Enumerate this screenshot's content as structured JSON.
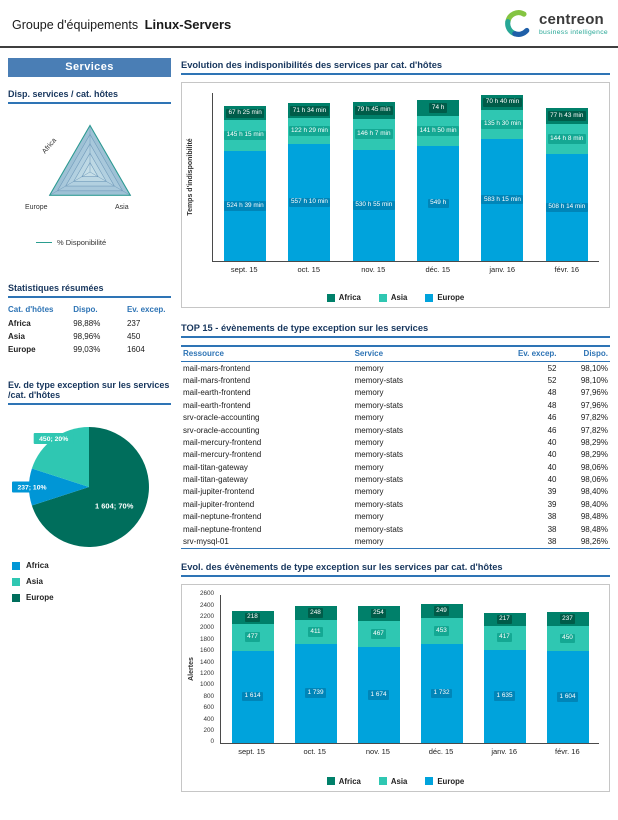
{
  "header": {
    "title_prefix": "Groupe d'équipements",
    "title_bold": "Linux-Servers",
    "logo_text": "centreon",
    "logo_subtitle": "business intelligence"
  },
  "colors": {
    "africa_bar": "#00806a",
    "asia_bar": "#2fc7b2",
    "europe_bar": "#00a3dc",
    "africa_pie": "#0096d6",
    "asia_pie": "#2fc7b2",
    "europe_pie": "#006e5c",
    "banner_bg": "#4a7eb5",
    "title_text": "#17365d",
    "accent_blue": "#2e74b5"
  },
  "sidebar": {
    "banner": "Services",
    "radar": {
      "title": "Disp. services / cat. hôtes",
      "legend": "% Disponibilité"
    },
    "stats": {
      "title": "Statistiques résumées",
      "columns": [
        "Cat. d'hôtes",
        "Dispo.",
        "Ev. excep."
      ],
      "rows": [
        [
          "Africa",
          "98,88%",
          "237"
        ],
        [
          "Asia",
          "98,96%",
          "450"
        ],
        [
          "Europe",
          "99,03%",
          "1604"
        ]
      ]
    },
    "pie": {
      "title": "Ev. de type exception sur les services /cat. d'hôtes"
    }
  },
  "main": {
    "section1_title": "Evolution des indisponibilités des services par cat. d'hôtes",
    "section2_title": "TOP 15 - évènements de type exception sur les services",
    "section3_title": "Evol. des évènements de type exception sur les services par cat. d'hôtes",
    "table": {
      "columns": [
        "Ressource",
        "Service",
        "Ev. excep.",
        "Dispo."
      ],
      "rows": [
        [
          "mail-mars-frontend",
          "memory",
          "52",
          "98,10%"
        ],
        [
          "mail-mars-frontend",
          "memory-stats",
          "52",
          "98,10%"
        ],
        [
          "mail-earth-frontend",
          "memory",
          "48",
          "97,96%"
        ],
        [
          "mail-earth-frontend",
          "memory-stats",
          "48",
          "97,96%"
        ],
        [
          "srv-oracle-accounting",
          "memory",
          "46",
          "97,82%"
        ],
        [
          "srv-oracle-accounting",
          "memory-stats",
          "46",
          "97,82%"
        ],
        [
          "mail-mercury-frontend",
          "memory",
          "40",
          "98,29%"
        ],
        [
          "mail-mercury-frontend",
          "memory-stats",
          "40",
          "98,29%"
        ],
        [
          "mail-titan-gateway",
          "memory",
          "40",
          "98,06%"
        ],
        [
          "mail-titan-gateway",
          "memory-stats",
          "40",
          "98,06%"
        ],
        [
          "mail-jupiter-frontend",
          "memory",
          "39",
          "98,40%"
        ],
        [
          "mail-jupiter-frontend",
          "memory-stats",
          "39",
          "98,40%"
        ],
        [
          "mail-neptune-frontend",
          "memory",
          "38",
          "98,48%"
        ],
        [
          "mail-neptune-frontend",
          "memory-stats",
          "38",
          "98,48%"
        ],
        [
          "srv-mysql-01",
          "memory",
          "38",
          "98,26%"
        ]
      ]
    }
  },
  "chart_data": [
    {
      "id": "chart1",
      "type": "bar",
      "stacked": true,
      "title": "Evolution des indisponibilités des services par cat. d'hôtes",
      "ylabel": "Temps d'indisponibilité",
      "y_unit": "hours",
      "ylim": [
        0,
        800
      ],
      "categories": [
        "sept. 15",
        "oct. 15",
        "nov. 15",
        "déc. 15",
        "janv. 16",
        "févr. 16"
      ],
      "legend": [
        "Africa",
        "Asia",
        "Europe"
      ],
      "series": [
        {
          "name": "Europe",
          "color": "#00a3dc",
          "label_bg": "#0085b8",
          "values": [
            524.65,
            557.17,
            530.92,
            549,
            583.25,
            508.23
          ],
          "labels": [
            "524 h 39 min",
            "557 h 10 min",
            "530 h 55 min",
            "549 h",
            "583 h 15 min",
            "508 h 14 min"
          ]
        },
        {
          "name": "Asia",
          "color": "#2fc7b2",
          "label_bg": "#14a893",
          "values": [
            145.25,
            122.48,
            146.12,
            141.83,
            135.5,
            144.13
          ],
          "labels": [
            "145 h 15 min",
            "122 h 29 min",
            "146 h 7 min",
            "141 h 50 min",
            "135 h 30 min",
            "144 h 8 min"
          ]
        },
        {
          "name": "Africa",
          "color": "#00806a",
          "label_bg": "#005c49",
          "values": [
            67.42,
            71.57,
            79.75,
            74,
            70.67,
            77.72
          ],
          "labels": [
            "67 h 25 min",
            "71 h 34 min",
            "79 h 45 min",
            "74 h",
            "70 h 40 min",
            "77 h 43 min"
          ]
        }
      ]
    },
    {
      "id": "chart2",
      "type": "bar",
      "stacked": true,
      "title": "Evol. des évènements de type exception sur les services par cat. d'hôtes",
      "ylabel": "Alertes",
      "ylim": [
        0,
        2600
      ],
      "ytick": 200,
      "categories": [
        "sept. 15",
        "oct. 15",
        "nov. 15",
        "déc. 15",
        "janv. 16",
        "févr. 16"
      ],
      "legend": [
        "Africa",
        "Asia",
        "Europe"
      ],
      "series": [
        {
          "name": "Europe",
          "color": "#00a3dc",
          "label_bg": "#0085b8",
          "values": [
            1614,
            1739,
            1674,
            1732,
            1635,
            1604
          ],
          "labels": [
            "1 614",
            "1 739",
            "1 674",
            "1 732",
            "1 635",
            "1 604"
          ]
        },
        {
          "name": "Asia",
          "color": "#2fc7b2",
          "label_bg": "#14a893",
          "values": [
            477,
            411,
            467,
            453,
            417,
            450
          ],
          "labels": [
            "477",
            "411",
            "467",
            "453",
            "417",
            "450"
          ]
        },
        {
          "name": "Africa",
          "color": "#00806a",
          "label_bg": "#005c49",
          "values": [
            218,
            248,
            254,
            249,
            217,
            237
          ],
          "labels": [
            "218",
            "248",
            "254",
            "249",
            "217",
            "237"
          ]
        }
      ]
    },
    {
      "id": "pie",
      "type": "pie",
      "title": "Ev. de type exception sur les services /cat. d'hôtes",
      "slices": [
        {
          "name": "Europe",
          "value": 1604,
          "pct": 70,
          "label": "1 604; 70%",
          "color": "#006e5c"
        },
        {
          "name": "Africa",
          "value": 237,
          "pct": 10,
          "label": "237; 10%",
          "color": "#0096d6"
        },
        {
          "name": "Asia",
          "value": 450,
          "pct": 20,
          "label": "450; 20%",
          "color": "#2fc7b2"
        }
      ],
      "legend": [
        {
          "name": "Africa",
          "color": "#0096d6"
        },
        {
          "name": "Asia",
          "color": "#2fc7b2"
        },
        {
          "name": "Europe",
          "color": "#006e5c"
        }
      ]
    },
    {
      "id": "radar",
      "type": "radar",
      "title": "Disp. services / cat. hôtes",
      "axes": [
        "Africa",
        "Europe",
        "Asia"
      ],
      "values": [
        98.88,
        99.03,
        98.96
      ],
      "scale": [
        0,
        100
      ],
      "legend": "% Disponibilité"
    }
  ]
}
